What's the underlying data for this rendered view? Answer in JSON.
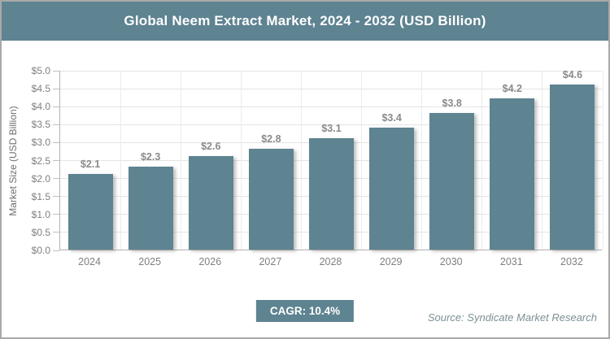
{
  "title": "Global Neem Extract Market, 2024 - 2032 (USD Billion)",
  "chart_data": {
    "type": "bar",
    "categories": [
      "2024",
      "2025",
      "2026",
      "2027",
      "2028",
      "2029",
      "2030",
      "2031",
      "2032"
    ],
    "values": [
      2.1,
      2.3,
      2.6,
      2.8,
      3.1,
      3.4,
      3.8,
      4.2,
      4.6
    ],
    "data_labels": [
      "$2.1",
      "$2.3",
      "$2.6",
      "$2.8",
      "$3.1",
      "$3.4",
      "$3.8",
      "$4.2",
      "$4.6"
    ],
    "title": "Global Neem Extract Market, 2024 - 2032 (USD Billion)",
    "xlabel": "",
    "ylabel": "Market Size (USD Billion)",
    "ylim": [
      0,
      5.0
    ],
    "ytick_step": 0.5,
    "ytick_labels": [
      "$0.0",
      "$0.5",
      "$1.0",
      "$1.5",
      "$2.0",
      "$2.5",
      "$3.0",
      "$3.5",
      "$4.0",
      "$4.5",
      "$5.0"
    ],
    "grid": true,
    "legend": "none",
    "bar_color": "#5E8391"
  },
  "footer": {
    "cagr_label": "CAGR: 10.4%",
    "source": "Source: Syndicate Market Research"
  },
  "colors": {
    "accent": "#5E8391",
    "title_text": "#ffffff",
    "tick_label_gray": "#7f7f7f",
    "data_label_gray": "#8a8a8a",
    "gridline": "#e4e4e4",
    "axis_line": "#b3b3b3",
    "frame_border": "#a9a9a9",
    "source_text": "#7d8f96"
  }
}
